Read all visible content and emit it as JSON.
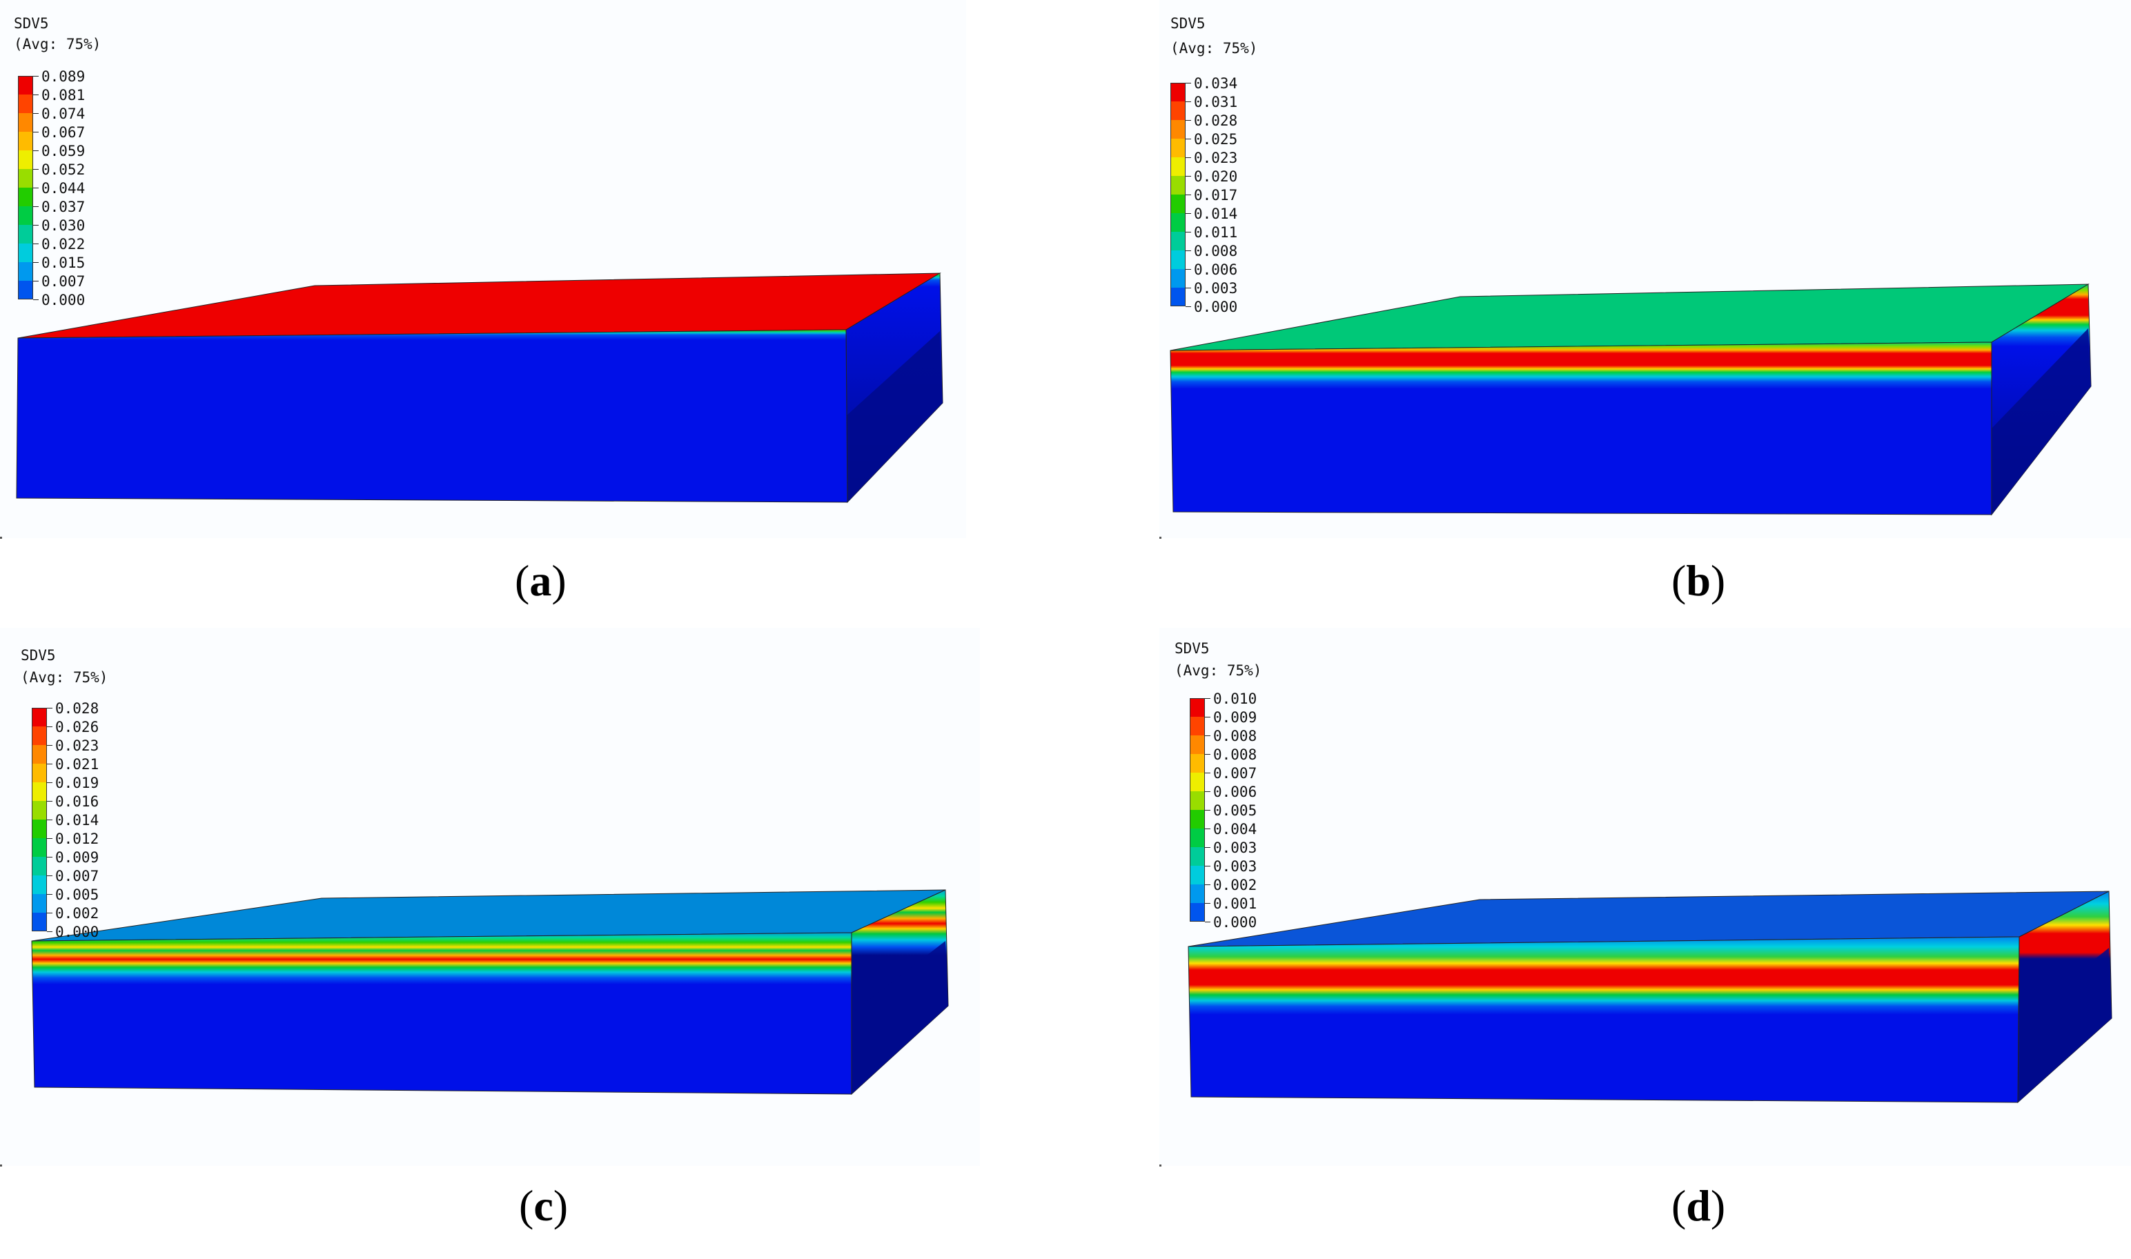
{
  "panels": [
    {
      "id": "a",
      "title": "SDV5",
      "avg": "(Avg: 75%)",
      "legend": [
        "0.089",
        "0.081",
        "0.074",
        "0.067",
        "0.059",
        "0.052",
        "0.044",
        "0.037",
        "0.030",
        "0.022",
        "0.015",
        "0.007",
        "0.000"
      ],
      "caption_letter": "a",
      "top_face_color": "#ee0000",
      "bands": [
        {
          "p": 0.0,
          "c": "#00c040"
        },
        {
          "p": 0.004,
          "c": "#7ee000"
        },
        {
          "p": 0.01,
          "c": "#00d060"
        },
        {
          "p": 0.018,
          "c": "#00c8d0"
        },
        {
          "p": 0.03,
          "c": "#0050f0"
        },
        {
          "p": 0.06,
          "c": "#0010e8"
        },
        {
          "p": 1.0,
          "c": "#0010e8"
        }
      ]
    },
    {
      "id": "b",
      "title": "SDV5",
      "avg": "(Avg: 75%)",
      "legend": [
        "0.034",
        "0.031",
        "0.028",
        "0.025",
        "0.023",
        "0.020",
        "0.017",
        "0.014",
        "0.011",
        "0.008",
        "0.006",
        "0.003",
        "0.000"
      ],
      "caption_letter": "b",
      "top_face_color": "#00c878",
      "bands": [
        {
          "p": 0.0,
          "c": "#00c878"
        },
        {
          "p": 0.025,
          "c": "#80e000"
        },
        {
          "p": 0.045,
          "c": "#ffb000"
        },
        {
          "p": 0.065,
          "c": "#ee0000"
        },
        {
          "p": 0.135,
          "c": "#ee0000"
        },
        {
          "p": 0.155,
          "c": "#ffd000"
        },
        {
          "p": 0.175,
          "c": "#00d040"
        },
        {
          "p": 0.2,
          "c": "#00c8e0"
        },
        {
          "p": 0.23,
          "c": "#0050f0"
        },
        {
          "p": 0.27,
          "c": "#0010e8"
        },
        {
          "p": 1.0,
          "c": "#0010e8"
        }
      ]
    },
    {
      "id": "c",
      "title": "SDV5",
      "avg": "(Avg: 75%)",
      "legend": [
        "0.028",
        "0.026",
        "0.023",
        "0.021",
        "0.019",
        "0.016",
        "0.014",
        "0.012",
        "0.009",
        "0.007",
        "0.005",
        "0.002",
        "0.000"
      ],
      "caption_letter": "c",
      "top_face_color": "#0088d8",
      "bands": [
        {
          "p": 0.0,
          "c": "#00a0e0"
        },
        {
          "p": 0.03,
          "c": "#00d8a0"
        },
        {
          "p": 0.06,
          "c": "#30d000"
        },
        {
          "p": 0.09,
          "c": "#ffe000"
        },
        {
          "p": 0.11,
          "c": "#00c840"
        },
        {
          "p": 0.14,
          "c": "#ffb000"
        },
        {
          "p": 0.165,
          "c": "#ee0000"
        },
        {
          "p": 0.19,
          "c": "#ffd000"
        },
        {
          "p": 0.215,
          "c": "#00c840"
        },
        {
          "p": 0.245,
          "c": "#00c8e0"
        },
        {
          "p": 0.28,
          "c": "#0050f0"
        },
        {
          "p": 0.32,
          "c": "#0010e8"
        },
        {
          "p": 1.0,
          "c": "#0010e8"
        }
      ]
    },
    {
      "id": "d",
      "title": "SDV5",
      "avg": "(Avg: 75%)",
      "legend": [
        "0.010",
        "0.009",
        "0.008",
        "0.008",
        "0.007",
        "0.006",
        "0.005",
        "0.004",
        "0.003",
        "0.003",
        "0.002",
        "0.001",
        "0.000"
      ],
      "caption_letter": "d",
      "top_face_color": "#0a55d8",
      "bands": [
        {
          "p": 0.0,
          "c": "#0080f0"
        },
        {
          "p": 0.06,
          "c": "#00d0e0"
        },
        {
          "p": 0.12,
          "c": "#30d040"
        },
        {
          "p": 0.16,
          "c": "#ffe000"
        },
        {
          "p": 0.2,
          "c": "#ee0000"
        },
        {
          "p": 0.29,
          "c": "#ee0000"
        },
        {
          "p": 0.32,
          "c": "#ffd000"
        },
        {
          "p": 0.35,
          "c": "#00c840"
        },
        {
          "p": 0.385,
          "c": "#00c8e0"
        },
        {
          "p": 0.42,
          "c": "#0050f0"
        },
        {
          "p": 0.47,
          "c": "#0010e8"
        },
        {
          "p": 1.0,
          "c": "#0010e8"
        }
      ]
    }
  ],
  "legend_palette": [
    "#ee0000",
    "#ff4400",
    "#ff8800",
    "#ffbb00",
    "#eeee00",
    "#99dd00",
    "#22cc00",
    "#00cc44",
    "#00cc99",
    "#00ccdd",
    "#0099ee",
    "#0055ee",
    "#0010e0"
  ],
  "side_face_color": "#000a8c"
}
